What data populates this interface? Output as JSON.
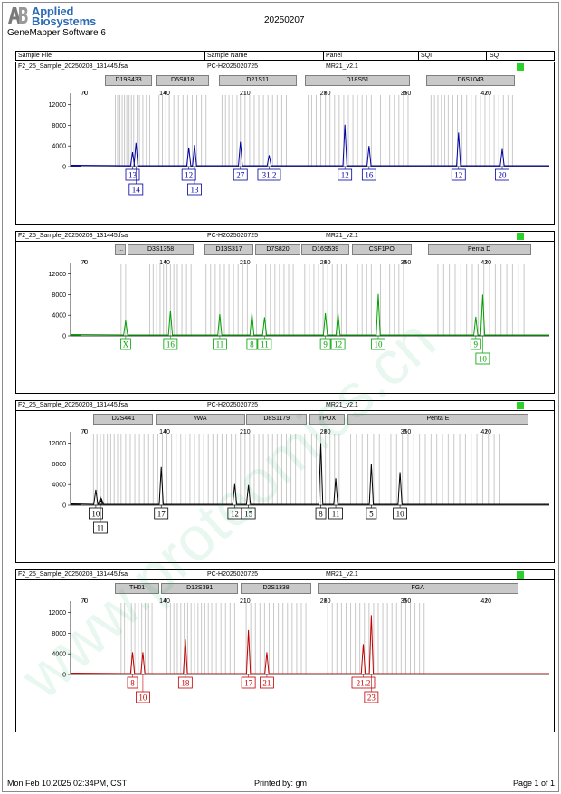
{
  "header": {
    "logo_line1": "Applied",
    "logo_line2": "Biosystems",
    "software": "GeneMapper Software 6",
    "run_date": "20250207",
    "columns": [
      "Sample File",
      "Sample Name",
      "Panel",
      "SQI",
      "SQ"
    ]
  },
  "panels": [
    {
      "file": "F2_25_Sample_20250208_131445.fsa",
      "sample": "PC-H2025020725",
      "panel": "MR21_v2.1",
      "color": "#0000a0",
      "markers": [
        {
          "name": "D19S433",
          "start": 88,
          "end": 129
        },
        {
          "name": "D5S818",
          "start": 132,
          "end": 179
        },
        {
          "name": "D21S11",
          "start": 187,
          "end": 255
        },
        {
          "name": "D18S51",
          "start": 262,
          "end": 354
        },
        {
          "name": "D6S1043",
          "start": 368,
          "end": 445
        }
      ],
      "peaks": [
        {
          "bp": 112,
          "h": 2800
        },
        {
          "bp": 115,
          "h": 4600
        },
        {
          "bp": 161,
          "h": 3700
        },
        {
          "bp": 166,
          "h": 4200
        },
        {
          "bp": 206,
          "h": 4800
        },
        {
          "bp": 231,
          "h": 2200
        },
        {
          "bp": 297,
          "h": 8100
        },
        {
          "bp": 318,
          "h": 4000
        },
        {
          "bp": 396,
          "h": 6600
        },
        {
          "bp": 434,
          "h": 3400
        }
      ],
      "labels": [
        {
          "bp": 112,
          "row": 1,
          "text": "13"
        },
        {
          "bp": 115,
          "row": 2,
          "text": "14"
        },
        {
          "bp": 161,
          "row": 1,
          "text": "12"
        },
        {
          "bp": 166,
          "row": 2,
          "text": "13"
        },
        {
          "bp": 206,
          "row": 1,
          "text": "27"
        },
        {
          "bp": 231,
          "row": 1,
          "text": "31.2"
        },
        {
          "bp": 297,
          "row": 1,
          "text": "12"
        },
        {
          "bp": 318,
          "row": 1,
          "text": "16"
        },
        {
          "bp": 396,
          "row": 1,
          "text": "12"
        },
        {
          "bp": 434,
          "row": 1,
          "text": "20"
        }
      ],
      "bins": [
        97,
        99,
        101,
        103,
        105,
        107,
        109,
        111,
        113,
        116,
        118,
        121,
        124,
        127,
        135,
        138,
        141,
        144,
        148,
        152,
        156,
        160,
        164,
        168,
        172,
        176,
        190,
        193,
        196,
        199,
        203,
        206,
        210,
        214,
        218,
        222,
        226,
        230,
        234,
        238,
        242,
        246,
        265,
        268,
        272,
        276,
        280,
        284,
        288,
        292,
        296,
        300,
        304,
        308,
        312,
        316,
        320,
        324,
        328,
        332,
        336,
        340,
        344,
        348,
        352,
        372,
        375,
        378,
        381,
        384,
        387,
        391,
        395,
        399,
        403,
        407,
        411,
        415,
        419,
        423,
        427,
        431,
        435,
        439,
        443
      ]
    },
    {
      "file": "F2_25_Sample_20250208_131445.fsa",
      "sample": "PC-H2025020725",
      "panel": "MR21_v2.1",
      "color": "#00a000",
      "markers": [
        {
          "name": "...",
          "start": 97,
          "end": 106
        },
        {
          "name": "D3S1358",
          "start": 108,
          "end": 165
        },
        {
          "name": "D13S317",
          "start": 175,
          "end": 217
        },
        {
          "name": "D7S820",
          "start": 219,
          "end": 258
        },
        {
          "name": "D16S539",
          "start": 259,
          "end": 301
        },
        {
          "name": "CSF1PO",
          "start": 303,
          "end": 355
        },
        {
          "name": "Penta D",
          "start": 369,
          "end": 459
        }
      ],
      "peaks": [
        {
          "bp": 106,
          "h": 3000
        },
        {
          "bp": 145,
          "h": 4900
        },
        {
          "bp": 188,
          "h": 4200
        },
        {
          "bp": 216,
          "h": 4400
        },
        {
          "bp": 227,
          "h": 3600
        },
        {
          "bp": 280,
          "h": 4400
        },
        {
          "bp": 291,
          "h": 4300
        },
        {
          "bp": 326,
          "h": 8100
        },
        {
          "bp": 411,
          "h": 3700
        },
        {
          "bp": 417,
          "h": 8000
        }
      ],
      "labels": [
        {
          "bp": 106,
          "row": 1,
          "text": "X"
        },
        {
          "bp": 145,
          "row": 1,
          "text": "16"
        },
        {
          "bp": 188,
          "row": 1,
          "text": "11"
        },
        {
          "bp": 216,
          "row": 1,
          "text": "8"
        },
        {
          "bp": 227,
          "row": 1,
          "text": "11"
        },
        {
          "bp": 280,
          "row": 1,
          "text": "9"
        },
        {
          "bp": 291,
          "row": 1,
          "text": "12"
        },
        {
          "bp": 326,
          "row": 1,
          "text": "10"
        },
        {
          "bp": 411,
          "row": 1,
          "text": "9"
        },
        {
          "bp": 417,
          "row": 2,
          "text": "10"
        }
      ],
      "bins": [
        102,
        106,
        127,
        130,
        133,
        136,
        139,
        142,
        145,
        148,
        151,
        155,
        159,
        163,
        176,
        180,
        184,
        188,
        192,
        196,
        200,
        204,
        208,
        212,
        216,
        220,
        224,
        228,
        232,
        236,
        240,
        244,
        248,
        252,
        262,
        266,
        270,
        274,
        278,
        282,
        286,
        290,
        294,
        298,
        308,
        312,
        316,
        320,
        324,
        328,
        332,
        336,
        340,
        344,
        348,
        378,
        383,
        388,
        393,
        398,
        403,
        408,
        413,
        418,
        423,
        428,
        433,
        438,
        443,
        448,
        453
      ]
    },
    {
      "file": "F2_25_Sample_20250208_131445.fsa",
      "sample": "PC-H2025020725",
      "panel": "MR21_v2.1",
      "color": "#000000",
      "markers": [
        {
          "name": "D2S441",
          "start": 78,
          "end": 130
        },
        {
          "name": "vWA",
          "start": 132,
          "end": 210
        },
        {
          "name": "D8S1179",
          "start": 211,
          "end": 264
        },
        {
          "name": "TPOX",
          "start": 266,
          "end": 297
        },
        {
          "name": "Penta E",
          "start": 299,
          "end": 457
        }
      ],
      "peaks": [
        {
          "bp": 80,
          "h": 3000
        },
        {
          "bp": 84,
          "h": 1500
        },
        {
          "bp": 85,
          "h": 1200
        },
        {
          "bp": 137,
          "h": 7400
        },
        {
          "bp": 201,
          "h": 4100
        },
        {
          "bp": 213,
          "h": 3900
        },
        {
          "bp": 276,
          "h": 12000
        },
        {
          "bp": 289,
          "h": 5200
        },
        {
          "bp": 320,
          "h": 8000
        },
        {
          "bp": 345,
          "h": 6400
        }
      ],
      "labels": [
        {
          "bp": 80,
          "row": 1,
          "text": "10"
        },
        {
          "bp": 84,
          "row": 2,
          "text": "11"
        },
        {
          "bp": 137,
          "row": 1,
          "text": "17"
        },
        {
          "bp": 201,
          "row": 1,
          "text": "12"
        },
        {
          "bp": 213,
          "row": 1,
          "text": "15"
        },
        {
          "bp": 276,
          "row": 1,
          "text": "8"
        },
        {
          "bp": 289,
          "row": 1,
          "text": "11"
        },
        {
          "bp": 320,
          "row": 1,
          "text": "5"
        },
        {
          "bp": 345,
          "row": 1,
          "text": "10"
        }
      ],
      "bins": [
        75,
        78,
        81,
        84,
        87,
        90,
        93,
        96,
        99,
        102,
        106,
        110,
        114,
        118,
        122,
        126,
        130,
        134,
        138,
        142,
        146,
        150,
        154,
        158,
        162,
        166,
        170,
        174,
        178,
        182,
        186,
        190,
        194,
        198,
        202,
        206,
        210,
        214,
        218,
        222,
        226,
        230,
        234,
        238,
        242,
        246,
        250,
        254,
        258,
        262,
        268,
        272,
        276,
        280,
        284,
        288,
        292,
        302,
        307,
        312,
        317,
        322,
        327,
        332,
        337,
        342,
        347,
        352,
        357,
        362,
        367,
        372,
        377,
        382,
        387,
        392,
        397,
        402,
        407,
        412,
        417,
        422,
        427,
        432
      ]
    },
    {
      "file": "F2_25_Sample_20250208_131445.fsa",
      "sample": "PC-H2025020725",
      "panel": "MR21_v2.1",
      "color": "#c00000",
      "markers": [
        {
          "name": "TH01",
          "start": 97,
          "end": 135
        },
        {
          "name": "D12S391",
          "start": 137,
          "end": 204
        },
        {
          "name": "D2S1338",
          "start": 206,
          "end": 268
        },
        {
          "name": "FGA",
          "start": 273,
          "end": 448
        }
      ],
      "peaks": [
        {
          "bp": 112,
          "h": 4300
        },
        {
          "bp": 121,
          "h": 4300
        },
        {
          "bp": 158,
          "h": 6800
        },
        {
          "bp": 213,
          "h": 8600
        },
        {
          "bp": 229,
          "h": 4300
        },
        {
          "bp": 313,
          "h": 5900
        },
        {
          "bp": 320,
          "h": 11500
        }
      ],
      "labels": [
        {
          "bp": 112,
          "row": 1,
          "text": "8"
        },
        {
          "bp": 121,
          "row": 2,
          "text": "10"
        },
        {
          "bp": 158,
          "row": 1,
          "text": "18"
        },
        {
          "bp": 213,
          "row": 1,
          "text": "17"
        },
        {
          "bp": 229,
          "row": 1,
          "text": "21"
        },
        {
          "bp": 313,
          "row": 1,
          "text": "21.2"
        },
        {
          "bp": 320,
          "row": 2,
          "text": "23"
        }
      ],
      "bins": [
        102,
        105,
        108,
        111,
        114,
        117,
        120,
        123,
        126,
        129,
        142,
        145,
        148,
        151,
        154,
        157,
        160,
        163,
        166,
        169,
        172,
        175,
        178,
        181,
        185,
        189,
        193,
        197,
        201,
        211,
        215,
        219,
        223,
        227,
        231,
        235,
        239,
        243,
        247,
        251,
        255,
        259,
        263,
        282,
        286,
        290,
        294,
        298,
        302,
        306,
        310,
        314,
        318,
        322,
        326,
        330,
        334,
        338,
        342,
        346,
        350,
        354,
        358,
        362,
        366
      ]
    }
  ],
  "chart_data": {
    "type": "line",
    "x_ticks": [
      70,
      140,
      210,
      280,
      350,
      420
    ],
    "y_ticks": [
      0,
      4000,
      8000,
      12000
    ],
    "xlim": [
      58,
      475
    ],
    "ylim": [
      0,
      13500
    ],
    "grid": false,
    "series": [
      {
        "peaks_bp": [
          112,
          115,
          161,
          166,
          206,
          231,
          297,
          318,
          396,
          434
        ],
        "peaks_h": [
          2800,
          4600,
          3700,
          4200,
          4800,
          2200,
          8100,
          4000,
          6600,
          3400
        ]
      },
      {
        "peaks_bp": [
          106,
          145,
          188,
          216,
          227,
          280,
          291,
          326,
          411,
          417
        ],
        "peaks_h": [
          3000,
          4900,
          4200,
          4400,
          3600,
          4400,
          4300,
          8100,
          3700,
          8000
        ]
      },
      {
        "peaks_bp": [
          80,
          84,
          85,
          137,
          201,
          213,
          276,
          289,
          320,
          345
        ],
        "peaks_h": [
          3000,
          1500,
          1200,
          7400,
          4100,
          3900,
          12000,
          5200,
          8000,
          6400
        ]
      },
      {
        "peaks_bp": [
          112,
          121,
          158,
          213,
          229,
          313,
          320
        ],
        "peaks_h": [
          4300,
          4300,
          6800,
          8600,
          4300,
          5900,
          11500
        ]
      }
    ]
  },
  "footer": {
    "printed_on": "Mon Feb 10,2025 02:34PM, CST",
    "printed_by": "Printed by: gm",
    "page": "Page 1 of 1"
  },
  "watermark": "www.proteomics.cn",
  "colors": {
    "logo": "#2d6bb5",
    "qc": "#2ad12a",
    "bin": "#c8c8c8",
    "bar": "#c9c9c9"
  }
}
